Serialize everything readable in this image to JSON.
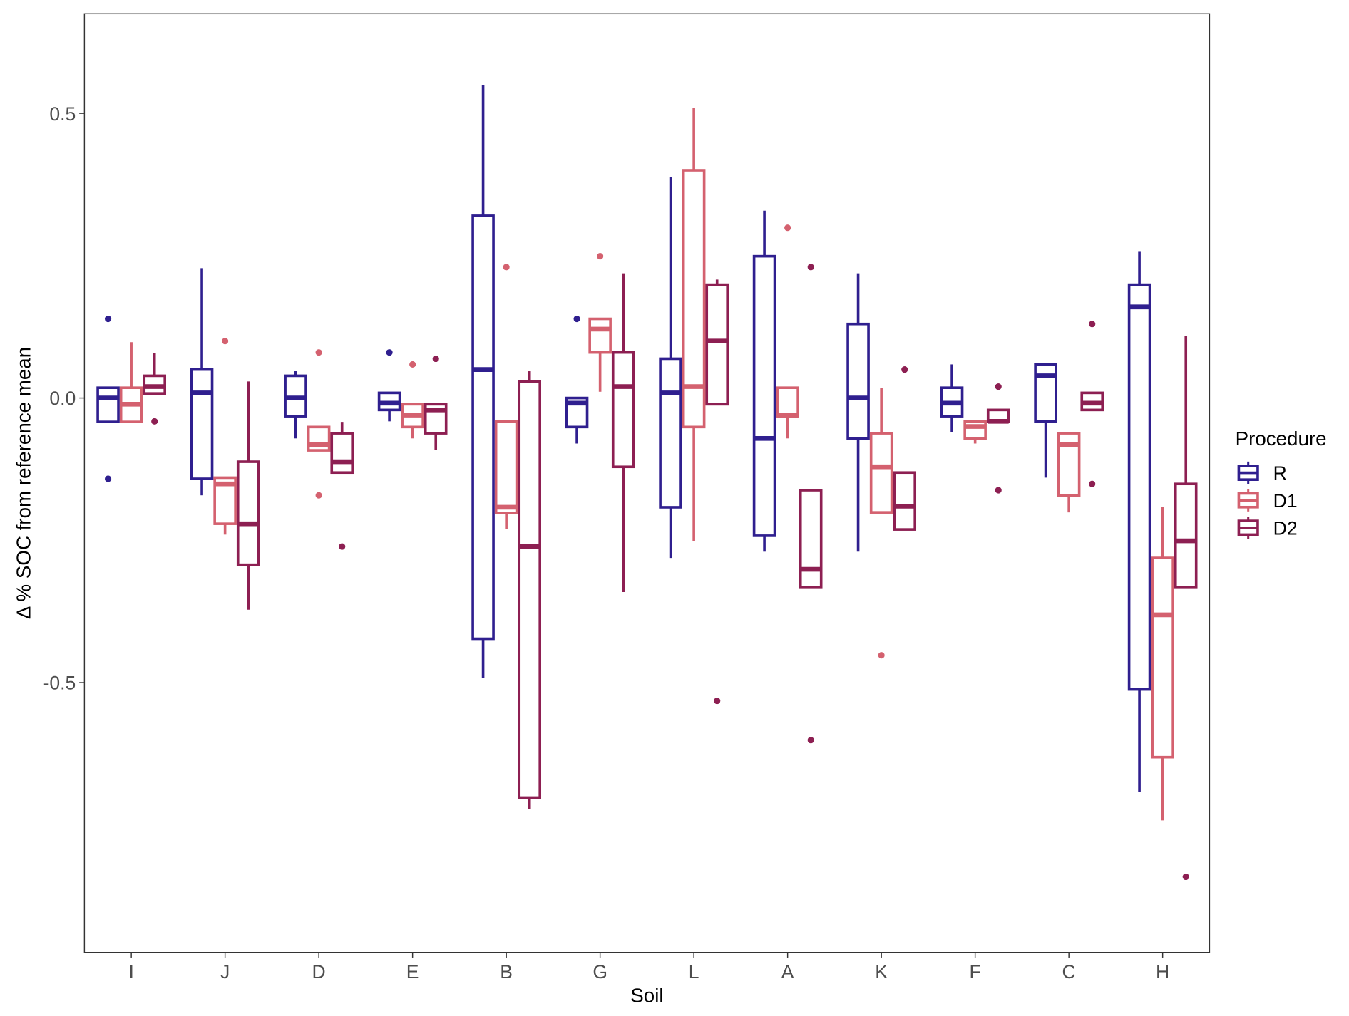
{
  "chart_data": {
    "type": "boxplot",
    "title": "",
    "xlabel": "Soil",
    "ylabel": "Δ % SOC from reference mean",
    "ylim": [
      -0.974,
      0.675
    ],
    "yticks": [
      0.5,
      0.0,
      -0.5
    ],
    "ytick_labels": [
      "0.5",
      "0.0",
      "-0.5"
    ],
    "grid": false,
    "legend": {
      "title": "Procedure",
      "placement": "right"
    },
    "categories": [
      "I",
      "J",
      "D",
      "E",
      "B",
      "G",
      "L",
      "A",
      "K",
      "F",
      "C",
      "H"
    ],
    "series": [
      {
        "name": "R",
        "color": "#2f1f8f",
        "boxes": [
          {
            "lo": -0.042,
            "q1": -0.042,
            "med": 0.0,
            "q3": 0.018,
            "hi": 0.018,
            "out": [
              0.139,
              -0.142
            ]
          },
          {
            "lo": -0.171,
            "q1": -0.142,
            "med": 0.009,
            "q3": 0.05,
            "hi": 0.228,
            "out": []
          },
          {
            "lo": -0.071,
            "q1": -0.032,
            "med": 0.0,
            "q3": 0.039,
            "hi": 0.047,
            "out": []
          },
          {
            "lo": -0.041,
            "q1": -0.021,
            "med": -0.009,
            "q3": 0.009,
            "hi": 0.009,
            "out": [
              0.08
            ]
          },
          {
            "lo": -0.492,
            "q1": -0.423,
            "med": 0.05,
            "q3": 0.32,
            "hi": 0.55,
            "out": []
          },
          {
            "lo": -0.08,
            "q1": -0.051,
            "med": -0.009,
            "q3": 0.0,
            "hi": 0.0,
            "out": [
              0.139
            ]
          },
          {
            "lo": -0.281,
            "q1": -0.192,
            "med": 0.009,
            "q3": 0.069,
            "hi": 0.388,
            "out": []
          },
          {
            "lo": -0.27,
            "q1": -0.242,
            "med": -0.071,
            "q3": 0.249,
            "hi": 0.329,
            "out": []
          },
          {
            "lo": -0.27,
            "q1": -0.071,
            "med": 0.0,
            "q3": 0.13,
            "hi": 0.219,
            "out": []
          },
          {
            "lo": -0.06,
            "q1": -0.032,
            "med": -0.009,
            "q3": 0.018,
            "hi": 0.059,
            "out": []
          },
          {
            "lo": -0.14,
            "q1": -0.041,
            "med": 0.039,
            "q3": 0.059,
            "hi": 0.059,
            "out": []
          },
          {
            "lo": -0.692,
            "q1": -0.512,
            "med": 0.16,
            "q3": 0.199,
            "hi": 0.258,
            "out": []
          }
        ]
      },
      {
        "name": "D1",
        "color": "#d4616f",
        "boxes": [
          {
            "lo": -0.042,
            "q1": -0.042,
            "med": -0.011,
            "q3": 0.018,
            "hi": 0.098,
            "out": []
          },
          {
            "lo": -0.24,
            "q1": -0.221,
            "med": -0.151,
            "q3": -0.14,
            "hi": -0.14,
            "out": [
              0.1
            ]
          },
          {
            "lo": -0.092,
            "q1": -0.092,
            "med": -0.082,
            "q3": -0.051,
            "hi": -0.051,
            "out": [
              0.08,
              -0.171
            ]
          },
          {
            "lo": -0.071,
            "q1": -0.051,
            "med": -0.03,
            "q3": -0.011,
            "hi": -0.011,
            "out": [
              0.059
            ]
          },
          {
            "lo": -0.23,
            "q1": -0.202,
            "med": -0.192,
            "q3": -0.041,
            "hi": -0.041,
            "out": [
              0.23
            ]
          },
          {
            "lo": 0.011,
            "q1": 0.08,
            "med": 0.121,
            "q3": 0.139,
            "hi": 0.139,
            "out": [
              0.249
            ]
          },
          {
            "lo": -0.251,
            "q1": -0.051,
            "med": 0.02,
            "q3": 0.4,
            "hi": 0.509,
            "out": []
          },
          {
            "lo": -0.071,
            "q1": -0.032,
            "med": -0.03,
            "q3": 0.018,
            "hi": 0.018,
            "out": [
              0.299
            ]
          },
          {
            "lo": -0.201,
            "q1": -0.201,
            "med": -0.121,
            "q3": -0.062,
            "hi": 0.018,
            "out": [
              -0.452
            ]
          },
          {
            "lo": -0.08,
            "q1": -0.071,
            "med": -0.05,
            "q3": -0.041,
            "hi": -0.041,
            "out": []
          },
          {
            "lo": -0.201,
            "q1": -0.171,
            "med": -0.082,
            "q3": -0.062,
            "hi": -0.062,
            "out": []
          },
          {
            "lo": -0.742,
            "q1": -0.631,
            "med": -0.381,
            "q3": -0.281,
            "hi": -0.192,
            "out": []
          }
        ]
      },
      {
        "name": "D2",
        "color": "#8d1f52",
        "boxes": [
          {
            "lo": 0.008,
            "q1": 0.008,
            "med": 0.02,
            "q3": 0.039,
            "hi": 0.079,
            "out": [
              -0.041
            ]
          },
          {
            "lo": -0.372,
            "q1": -0.293,
            "med": -0.221,
            "q3": -0.112,
            "hi": 0.029,
            "out": []
          },
          {
            "lo": -0.131,
            "q1": -0.131,
            "med": -0.112,
            "q3": -0.062,
            "hi": -0.042,
            "out": [
              -0.261
            ]
          },
          {
            "lo": -0.091,
            "q1": -0.062,
            "med": -0.021,
            "q3": -0.011,
            "hi": -0.011,
            "out": [
              0.069
            ]
          },
          {
            "lo": -0.722,
            "q1": -0.702,
            "med": -0.261,
            "q3": 0.029,
            "hi": 0.047,
            "out": []
          },
          {
            "lo": -0.341,
            "q1": -0.121,
            "med": 0.02,
            "q3": 0.08,
            "hi": 0.219,
            "out": []
          },
          {
            "lo": -0.011,
            "q1": -0.011,
            "med": 0.1,
            "q3": 0.199,
            "hi": 0.208,
            "out": [
              -0.532
            ]
          },
          {
            "lo": -0.332,
            "q1": -0.332,
            "med": -0.301,
            "q3": -0.162,
            "hi": -0.162,
            "out": [
              0.23,
              -0.601
            ]
          },
          {
            "lo": -0.231,
            "q1": -0.231,
            "med": -0.19,
            "q3": -0.131,
            "hi": -0.131,
            "out": [
              0.05
            ]
          },
          {
            "lo": -0.042,
            "q1": -0.042,
            "med": -0.041,
            "q3": -0.021,
            "hi": -0.021,
            "out": [
              0.02,
              -0.162
            ]
          },
          {
            "lo": -0.021,
            "q1": -0.021,
            "med": -0.009,
            "q3": 0.009,
            "hi": 0.009,
            "out": [
              0.13,
              -0.151
            ]
          },
          {
            "lo": -0.332,
            "q1": -0.332,
            "med": -0.251,
            "q3": -0.151,
            "hi": 0.109,
            "out": [
              -0.841
            ]
          }
        ]
      }
    ]
  }
}
